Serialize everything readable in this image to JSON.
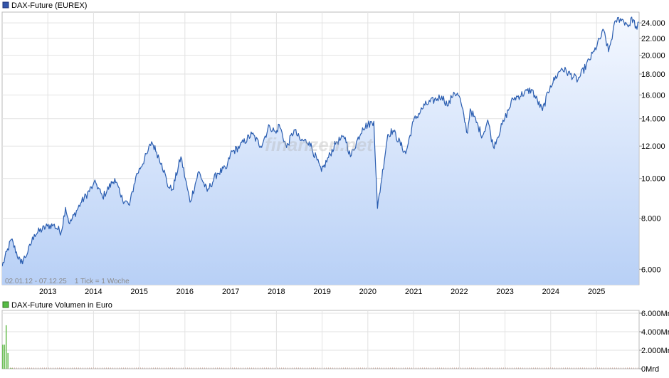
{
  "main_chart": {
    "legend_label": "DAX-Future (EUREX)",
    "legend_color": "#3355aa",
    "line_color": "#2a5db0",
    "fill_top_color": "#f4f8ff",
    "fill_bottom_color": "#b8d0f6",
    "info_text": "02.01.12 - 07.12.25    1 Tick = 1 Woche",
    "watermark": "finanzen.net"
  },
  "volume_chart": {
    "legend_label": "DAX-Future Volumen in Euro",
    "legend_color": "#55bb44",
    "bar_color": "#6fbf5a"
  },
  "chart_data": [
    {
      "type": "area",
      "title": "DAX-Future (EUREX)",
      "xlabel": "",
      "ylabel": "",
      "y_scale": "log",
      "ylim": [
        5500,
        25500
      ],
      "xlim": [
        "2012-01-02",
        "2025-12-07"
      ],
      "grid": true,
      "legend_position": "top-left",
      "x_tick_labels": [
        "2013",
        "2014",
        "2015",
        "2016",
        "2017",
        "2018",
        "2019",
        "2020",
        "2021",
        "2022",
        "2023",
        "2024",
        "2025"
      ],
      "y_ticks": [
        {
          "value": 6000,
          "label": "6.000"
        },
        {
          "value": 8000,
          "label": "8.000"
        },
        {
          "value": 10000,
          "label": "10.000"
        },
        {
          "value": 12000,
          "label": "12.000"
        },
        {
          "value": 14000,
          "label": "14.000"
        },
        {
          "value": 16000,
          "label": "16.000"
        },
        {
          "value": 18000,
          "label": "18.000"
        },
        {
          "value": 20000,
          "label": "20.000"
        },
        {
          "value": 22000,
          "label": "22.000"
        },
        {
          "value": 24000,
          "label": "24.000"
        }
      ],
      "series": [
        {
          "values": [
            [
              "2012-01-02",
              6100
            ],
            [
              "2012-03-15",
              7100
            ],
            [
              "2012-05-30",
              6200
            ],
            [
              "2012-07-25",
              6600
            ],
            [
              "2012-09-15",
              7300
            ],
            [
              "2012-12-28",
              7650
            ],
            [
              "2013-02-15",
              7700
            ],
            [
              "2013-04-18",
              7400
            ],
            [
              "2013-05-22",
              8500
            ],
            [
              "2013-06-24",
              7750
            ],
            [
              "2013-09-20",
              8700
            ],
            [
              "2013-12-27",
              9600
            ],
            [
              "2014-01-20",
              9750
            ],
            [
              "2014-03-14",
              9000
            ],
            [
              "2014-06-20",
              10000
            ],
            [
              "2014-08-08",
              9000
            ],
            [
              "2014-10-15",
              8600
            ],
            [
              "2014-12-05",
              10100
            ],
            [
              "2015-03-05",
              11500
            ],
            [
              "2015-04-10",
              12300
            ],
            [
              "2015-05-20",
              11600
            ],
            [
              "2015-06-29",
              10900
            ],
            [
              "2015-08-24",
              9500
            ],
            [
              "2015-09-24",
              9400
            ],
            [
              "2015-11-30",
              11300
            ],
            [
              "2016-02-11",
              8750
            ],
            [
              "2016-04-20",
              10400
            ],
            [
              "2016-06-27",
              9300
            ],
            [
              "2016-09-15",
              10300
            ],
            [
              "2016-11-30",
              10600
            ],
            [
              "2016-12-30",
              11500
            ],
            [
              "2017-03-15",
              12000
            ],
            [
              "2017-06-20",
              12850
            ],
            [
              "2017-08-29",
              12000
            ],
            [
              "2017-11-07",
              13450
            ],
            [
              "2017-12-29",
              12900
            ],
            [
              "2018-01-23",
              13550
            ],
            [
              "2018-03-23",
              11900
            ],
            [
              "2018-05-22",
              13150
            ],
            [
              "2018-07-10",
              12400
            ],
            [
              "2018-09-20",
              12300
            ],
            [
              "2018-12-27",
              10400
            ],
            [
              "2019-04-25",
              12300
            ],
            [
              "2019-07-05",
              12600
            ],
            [
              "2019-08-15",
              11300
            ],
            [
              "2019-11-20",
              13300
            ],
            [
              "2020-02-18",
              13800
            ],
            [
              "2020-03-18",
              8450
            ],
            [
              "2020-06-08",
              12800
            ],
            [
              "2020-07-20",
              13100
            ],
            [
              "2020-10-30",
              11500
            ],
            [
              "2020-12-30",
              13800
            ],
            [
              "2021-03-31",
              15100
            ],
            [
              "2021-08-13",
              15900
            ],
            [
              "2021-10-04",
              15050
            ],
            [
              "2021-11-17",
              16250
            ],
            [
              "2021-12-31",
              15900
            ],
            [
              "2022-03-07",
              12900
            ],
            [
              "2022-03-29",
              14800
            ],
            [
              "2022-07-05",
              12700
            ],
            [
              "2022-08-16",
              13900
            ],
            [
              "2022-09-29",
              11950
            ],
            [
              "2022-12-30",
              14000
            ],
            [
              "2023-03-06",
              15650
            ],
            [
              "2023-07-31",
              16500
            ],
            [
              "2023-10-27",
              14650
            ],
            [
              "2023-12-29",
              16850
            ],
            [
              "2024-03-28",
              18600
            ],
            [
              "2024-08-05",
              17400
            ],
            [
              "2024-12-13",
              20450
            ],
            [
              "2025-02-28",
              23000
            ],
            [
              "2025-04-07",
              20400
            ],
            [
              "2025-06-03",
              24300
            ],
            [
              "2025-07-10",
              24600
            ],
            [
              "2025-09-25",
              23600
            ],
            [
              "2025-10-09",
              24800
            ],
            [
              "2025-11-20",
              23150
            ],
            [
              "2025-12-05",
              24100
            ]
          ]
        }
      ]
    },
    {
      "type": "bar",
      "title": "DAX-Future Volumen in Euro",
      "xlabel": "",
      "ylabel": "",
      "ylim": [
        0,
        6000
      ],
      "xlim": [
        "2012-01-02",
        "2025-12-07"
      ],
      "grid": true,
      "legend_position": "top-left",
      "y_ticks": [
        {
          "value": 0,
          "label": "0Mrd"
        },
        {
          "value": 2000,
          "label": "2.000Mrd"
        },
        {
          "value": 4000,
          "label": "4.000Mrd"
        },
        {
          "value": 6000,
          "label": "6.000Mrd"
        }
      ],
      "series": [
        {
          "values": [
            [
              "2012-01-02",
              2600
            ],
            [
              "2012-01-16",
              2600
            ],
            [
              "2012-01-30",
              4700
            ],
            [
              "2012-02-13",
              1700
            ],
            [
              "2012-03-05",
              100
            ],
            [
              "2012-03-19",
              60
            ]
          ]
        }
      ]
    }
  ]
}
